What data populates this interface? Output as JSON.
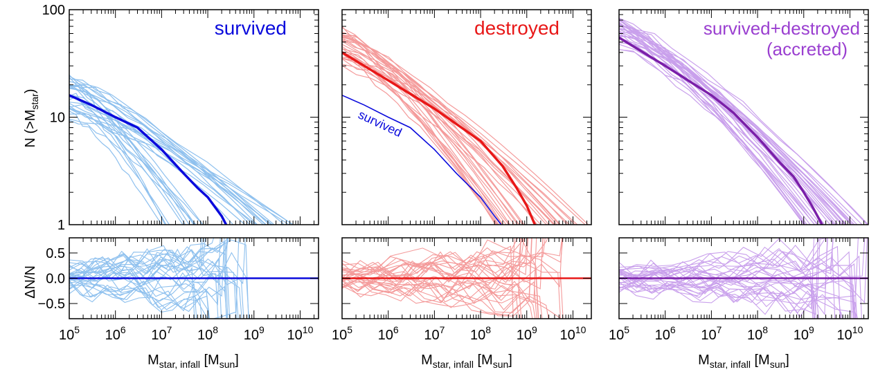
{
  "figure": {
    "ylabel_top_main": "N (>M",
    "ylabel_top_sub": "star",
    "ylabel_top_close": ")",
    "ylabel_bottom": "ΔN/N",
    "xlabel_main": "M",
    "xlabel_sub1": "star, infall",
    "xlabel_mid": " [M",
    "xlabel_sub2": "sun",
    "xlabel_close": "]"
  },
  "chart_data": [
    {
      "type": "line",
      "panel": "top-left",
      "title": "survived",
      "annotation": "",
      "xscale": "log",
      "yscale": "log",
      "xlim": [
        100000,
        25000000000
      ],
      "ylim": [
        1,
        100
      ],
      "xticks": [
        {
          "base": "10",
          "exp": "5"
        },
        {
          "base": "10",
          "exp": "6"
        },
        {
          "base": "10",
          "exp": "7"
        },
        {
          "base": "10",
          "exp": "8"
        },
        {
          "base": "10",
          "exp": "9"
        },
        {
          "base": "10",
          "exp": "10"
        }
      ],
      "yticks": [
        "1",
        "10",
        "100"
      ],
      "main_color": "#0a0adc",
      "thin_color": "#8ec0ee",
      "median": {
        "x": [
          100000,
          300000,
          1000000,
          3000000,
          10000000,
          30000000,
          60000000,
          100000000,
          200000000,
          250000000
        ],
        "y": [
          16,
          13,
          10,
          8,
          5,
          3,
          2.2,
          1.8,
          1.2,
          1
        ]
      },
      "realizations": {
        "count": 30,
        "y0_range": [
          10,
          24
        ],
        "x_end_range": [
          10000000,
          10000000000
        ]
      }
    },
    {
      "type": "line",
      "panel": "top-middle",
      "title": "destroyed",
      "annotation": "survived",
      "xscale": "log",
      "yscale": "log",
      "xlim": [
        100000,
        25000000000
      ],
      "ylim": [
        1,
        100
      ],
      "xticks": [
        {
          "base": "10",
          "exp": "5"
        },
        {
          "base": "10",
          "exp": "6"
        },
        {
          "base": "10",
          "exp": "7"
        },
        {
          "base": "10",
          "exp": "8"
        },
        {
          "base": "10",
          "exp": "9"
        },
        {
          "base": "10",
          "exp": "10"
        }
      ],
      "yticks": [
        "1",
        "10",
        "100"
      ],
      "main_color": "#e81818",
      "thin_color": "#f49a9a",
      "median": {
        "x": [
          100000,
          1000000,
          10000000,
          100000000,
          300000000,
          600000000,
          1000000000,
          1500000000
        ],
        "y": [
          40,
          22,
          12,
          6,
          3.5,
          2.2,
          1.5,
          1
        ]
      },
      "comparison": {
        "name": "survived",
        "color": "#0a0adc",
        "x": [
          100000,
          300000,
          1000000,
          3000000,
          10000000,
          30000000,
          100000000,
          200000000,
          280000000
        ],
        "y": [
          16,
          13,
          10,
          8,
          5,
          3,
          1.8,
          1.2,
          1
        ]
      },
      "realizations": {
        "count": 30,
        "y0_range": [
          25,
          65
        ],
        "x_end_range": [
          200000000,
          25000000000
        ]
      }
    },
    {
      "type": "line",
      "panel": "top-right",
      "title": "survived+destroyed",
      "title_line2": "(accreted)",
      "annotation": "",
      "xscale": "log",
      "yscale": "log",
      "xlim": [
        100000,
        25000000000
      ],
      "ylim": [
        1,
        100
      ],
      "xticks": [
        {
          "base": "10",
          "exp": "5"
        },
        {
          "base": "10",
          "exp": "6"
        },
        {
          "base": "10",
          "exp": "7"
        },
        {
          "base": "10",
          "exp": "8"
        },
        {
          "base": "10",
          "exp": "9"
        },
        {
          "base": "10",
          "exp": "10"
        }
      ],
      "yticks": [
        "1",
        "10",
        "100"
      ],
      "main_color": "#7a1fa8",
      "thin_color": "#c9a0ec",
      "median": {
        "x": [
          100000,
          1000000,
          10000000,
          30000000,
          100000000,
          300000000,
          600000000,
          1000000000,
          1500000000,
          2500000000
        ],
        "y": [
          55,
          30,
          16,
          11,
          6.5,
          3.8,
          2.8,
          2,
          1.5,
          1
        ]
      },
      "realizations": {
        "count": 30,
        "y0_range": [
          42,
          80
        ],
        "x_end_range": [
          1000000000,
          25000000000
        ]
      }
    },
    {
      "type": "line",
      "panel": "bottom-left",
      "ylabel": "ΔN/N",
      "xscale": "log",
      "xlim": [
        100000,
        25000000000
      ],
      "ylim": [
        -0.8,
        0.8
      ],
      "yticks": [
        "0.5",
        "0.0",
        "−0.5"
      ],
      "main_color": "#0a0adc",
      "thin_color": "#8ec0ee",
      "zero_line": 0,
      "residuals": {
        "count": 30,
        "range": [
          -0.8,
          0.8
        ]
      }
    },
    {
      "type": "line",
      "panel": "bottom-middle",
      "xscale": "log",
      "xlim": [
        100000,
        25000000000
      ],
      "ylim": [
        -0.8,
        0.8
      ],
      "main_color": "#e81818",
      "thin_color": "#f49a9a",
      "zero_line": 0,
      "residuals": {
        "count": 30,
        "range": [
          -0.8,
          0.8
        ]
      }
    },
    {
      "type": "line",
      "panel": "bottom-right",
      "xscale": "log",
      "xlim": [
        100000,
        25000000000
      ],
      "ylim": [
        -0.8,
        0.8
      ],
      "main_color": "#7a1fa8",
      "thin_color": "#c9a0ec",
      "zero_line": 0,
      "residuals": {
        "count": 30,
        "range": [
          -0.8,
          0.8
        ]
      }
    }
  ]
}
